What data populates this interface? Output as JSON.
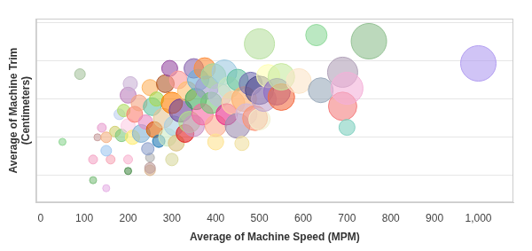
{
  "chart_data": {
    "type": "bubble",
    "x_label": "Average of Machine Speed (MPM)",
    "y_label": [
      "Average of Machine Trim",
      "(Centimeters)"
    ],
    "xlim": [
      -10,
      1080
    ],
    "ylim": [
      0.3,
      5.1
    ],
    "xticks": [
      0,
      100,
      200,
      300,
      400,
      500,
      600,
      700,
      800,
      900,
      {
        "value": 1000,
        "label": "1,000"
      }
    ],
    "yticks": [
      1,
      2,
      3,
      4,
      5
    ],
    "grid": true,
    "tick_labels": "x",
    "x": [
      50,
      90,
      120,
      120,
      150,
      160,
      200,
      200,
      250,
      250,
      130,
      140,
      150,
      150,
      170,
      180,
      185,
      190,
      200,
      200,
      205,
      210,
      215,
      225,
      230,
      240,
      245,
      250,
      255,
      260,
      265,
      270,
      280,
      285,
      290,
      295,
      300,
      305,
      310,
      315,
      320,
      330,
      335,
      340,
      350,
      350,
      355,
      360,
      370,
      375,
      380,
      390,
      395,
      400,
      400,
      410,
      420,
      425,
      430,
      440,
      450,
      450,
      460,
      465,
      470,
      480,
      490,
      500,
      500,
      500,
      510,
      520,
      540,
      550,
      550,
      590,
      630,
      640,
      690,
      690,
      700,
      700,
      750,
      1000,
      300,
      250
    ],
    "values": [
      1.88,
      3.65,
      1.42,
      0.88,
      0.67,
      1.42,
      1.12,
      1.42,
      1.14,
      1.47,
      2.0,
      2.25,
      2.0,
      1.65,
      2.15,
      2.6,
      2.05,
      2.7,
      2.3,
      3.1,
      3.4,
      2.0,
      2.6,
      2.9,
      2.1,
      2.4,
      1.7,
      3.3,
      2.8,
      2.2,
      3.0,
      1.9,
      2.5,
      3.4,
      2.0,
      3.8,
      2.9,
      2.3,
      1.85,
      3.5,
      2.7,
      2.1,
      3.2,
      2.4,
      3.8,
      2.3,
      3.0,
      3.5,
      2.6,
      3.8,
      3.3,
      2.9,
      3.6,
      2.3,
      1.88,
      3.1,
      3.7,
      2.6,
      3.3,
      2.9,
      2.3,
      3.5,
      1.84,
      3.0,
      2.6,
      3.4,
      2.5,
      4.44,
      3.23,
      2.47,
      3.0,
      3.6,
      3.19,
      3.05,
      3.58,
      3.47,
      4.67,
      3.23,
      3.7,
      2.81,
      3.28,
      2.26,
      4.51,
      3.93,
      1.42,
      1.2
    ],
    "sizes": [
      4,
      6,
      5,
      4,
      4,
      5,
      4,
      5,
      6,
      5,
      4,
      5,
      6,
      6,
      6,
      6,
      7,
      7,
      8,
      9,
      8,
      8,
      9,
      9,
      10,
      8,
      7,
      9,
      10,
      9,
      8,
      7,
      11,
      10,
      10,
      9,
      12,
      11,
      9,
      10,
      13,
      10,
      11,
      12,
      11,
      12,
      12,
      12,
      12,
      12,
      13,
      12,
      14,
      12,
      9,
      13,
      14,
      12,
      12,
      13,
      14,
      12,
      8,
      14,
      12,
      13,
      14,
      17,
      16,
      12,
      14,
      13,
      15,
      15,
      15,
      14,
      12,
      14,
      17,
      16,
      18,
      9,
      20,
      20,
      7,
      6
    ],
    "colors": [
      "#8fd694",
      "#a8c4a0",
      "#f4a6c6",
      "#7fbf7f",
      "#e6b3e6",
      "#f7a8b8",
      "#4f8f4f",
      "#f9b4d0",
      "#d9b38c",
      "#b0b0b0",
      "#c9a0a0",
      "#e8a0d0",
      "#f4b183",
      "#a0c8f0",
      "#d0d070",
      "#c0d0f0",
      "#7fc97f",
      "#b3de69",
      "#fccde5",
      "#bc80bd",
      "#cab2d6",
      "#ffed6f",
      "#fb8072",
      "#f4a582",
      "#80b1d3",
      "#e78ac3",
      "#8da0cb",
      "#fdb462",
      "#66c2a5",
      "#d95f02",
      "#a6d854",
      "#1f78b4",
      "#e5c494",
      "#b15928",
      "#ccebc5",
      "#984ea3",
      "#ff7f00",
      "#a6cee3",
      "#d9c27f",
      "#fb9a99",
      "#6a3d9a",
      "#e31a1c",
      "#fdbf6f",
      "#b2df8a",
      "#8c6bb1",
      "#c994c7",
      "#41ab5d",
      "#6baed6",
      "#f768a1",
      "#fd8d3c",
      "#9e9ac8",
      "#74c476",
      "#a1d99b",
      "#fcae91",
      "#fee391",
      "#bcbddc",
      "#9ecae1",
      "#e7298a",
      "#c7e9c0",
      "#fdd0a2",
      "#9e8fb0",
      "#66c2a4",
      "#f0e0a0",
      "#fdae6b",
      "#d4b9da",
      "#7570b3",
      "#fc9272",
      "#b8e0a0",
      "#4a4a8a",
      "#f0f0d0",
      "#c2a5cf",
      "#ffffb3",
      "#8e6cc4",
      "#f46d43",
      "#c7e9a0",
      "#fbe5c8",
      "#8ed99a",
      "#9aaabb",
      "#b0a0b8",
      "#f48080",
      "#f4b0d8",
      "#80d0c0",
      "#8fbf8f",
      "#b19cf0",
      "#d9d9a0",
      "#c0a0a0"
    ]
  }
}
